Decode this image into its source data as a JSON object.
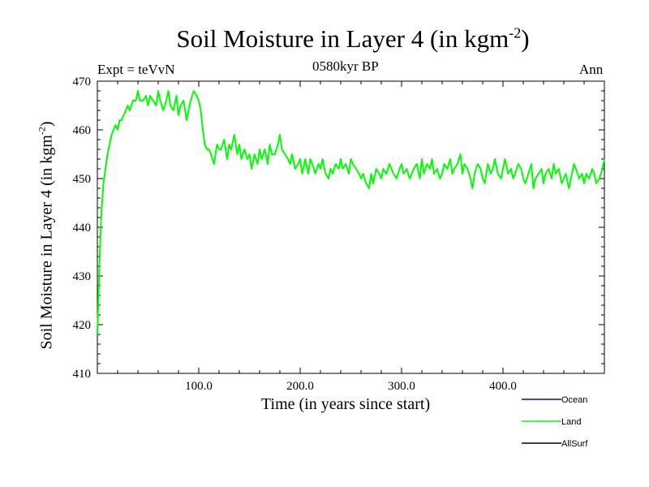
{
  "header": {
    "title_main": "Soil Moisture in Layer 4 (in kgm",
    "title_sup": "-2",
    "title_end": ")",
    "experiment": "Expt = teVvN",
    "period": "0580kyr BP",
    "season": "Ann"
  },
  "chart_data": {
    "type": "line",
    "title": "Soil Moisture in Layer 4 (in kgm-2)",
    "xlabel": "Time (in years since start)",
    "ylabel": "Soil Moisture in Layer 4 (in kgm-2)",
    "xlim": [
      0,
      500
    ],
    "ylim": [
      410,
      470
    ],
    "x_ticks": [
      100,
      200,
      300,
      400
    ],
    "x_tick_labels": [
      "100.0",
      "200.0",
      "300.0",
      "400.0"
    ],
    "y_ticks": [
      410,
      420,
      430,
      440,
      450,
      460,
      470
    ],
    "y_tick_labels": [
      "410",
      "420",
      "430",
      "440",
      "450",
      "460",
      "470"
    ],
    "legend_position": "bottom-right, below plot",
    "series": [
      {
        "name": "Ocean",
        "color": "#0000ff",
        "x": [],
        "y": []
      },
      {
        "name": "Land",
        "color": "#00ff00",
        "x": [
          0,
          1,
          2,
          3,
          4,
          5,
          6,
          8,
          10,
          12,
          14,
          16,
          18,
          20,
          22,
          24,
          26,
          28,
          30,
          32,
          35,
          38,
          40,
          42,
          45,
          48,
          50,
          52,
          55,
          58,
          60,
          62,
          65,
          68,
          70,
          72,
          75,
          78,
          80,
          82,
          85,
          88,
          90,
          92,
          95,
          98,
          100,
          102,
          104,
          106,
          108,
          110,
          112,
          115,
          118,
          120,
          122,
          125,
          128,
          130,
          132,
          135,
          138,
          140,
          142,
          145,
          148,
          150,
          152,
          155,
          158,
          160,
          162,
          165,
          168,
          170,
          172,
          175,
          178,
          180,
          182,
          185,
          188,
          190,
          192,
          195,
          198,
          200,
          202,
          205,
          208,
          210,
          212,
          215,
          218,
          220,
          222,
          225,
          228,
          230,
          232,
          235,
          238,
          240,
          242,
          245,
          248,
          250,
          252,
          255,
          258,
          260,
          262,
          265,
          268,
          270,
          272,
          275,
          278,
          280,
          282,
          285,
          288,
          290,
          292,
          295,
          298,
          300,
          302,
          305,
          308,
          310,
          312,
          315,
          318,
          320,
          322,
          325,
          328,
          330,
          332,
          335,
          338,
          340,
          342,
          345,
          348,
          350,
          352,
          355,
          358,
          360,
          362,
          365,
          368,
          370,
          372,
          375,
          378,
          380,
          382,
          385,
          388,
          390,
          392,
          395,
          398,
          400,
          402,
          405,
          408,
          410,
          412,
          415,
          418,
          420,
          422,
          425,
          428,
          430,
          432,
          435,
          438,
          440,
          442,
          445,
          448,
          450,
          452,
          455,
          458,
          460,
          462,
          465,
          468,
          470,
          472,
          475,
          478,
          480,
          482,
          485,
          488,
          490,
          492,
          495,
          498,
          500
        ],
        "y": [
          418,
          425,
          432,
          438,
          443,
          446,
          449,
          452,
          455,
          457,
          459,
          460,
          461,
          460,
          462,
          462,
          463,
          464,
          465,
          464,
          466,
          466,
          468,
          466,
          466,
          467,
          465,
          467,
          466,
          465,
          468,
          466,
          464,
          466,
          468,
          465,
          464,
          467,
          463,
          465,
          466,
          462,
          464,
          466,
          468,
          467,
          466,
          464,
          460,
          457,
          456,
          456,
          455,
          453,
          457,
          456,
          456,
          458,
          454,
          457,
          456,
          459,
          455,
          457,
          454,
          456,
          454,
          455,
          452,
          455,
          453,
          456,
          454,
          456,
          453,
          457,
          455,
          455,
          457,
          459,
          456,
          455,
          454,
          453,
          455,
          452,
          453,
          454,
          451,
          454,
          451,
          454,
          453,
          451,
          453,
          452,
          454,
          451,
          450,
          452,
          451,
          453,
          452,
          454,
          452,
          453,
          451,
          454,
          453,
          452,
          451,
          450,
          451,
          449,
          448,
          451,
          449,
          452,
          451,
          450,
          452,
          451,
          453,
          452,
          451,
          450,
          452,
          453,
          451,
          452,
          450,
          451,
          452,
          453,
          450,
          454,
          451,
          453,
          452,
          454,
          451,
          452,
          450,
          451,
          453,
          452,
          454,
          451,
          452,
          453,
          455,
          451,
          453,
          452,
          450,
          448,
          451,
          453,
          452,
          450,
          449,
          453,
          451,
          452,
          454,
          451,
          450,
          452,
          454,
          451,
          452,
          450,
          451,
          453,
          452,
          450,
          449,
          451,
          453,
          448,
          450,
          451,
          452,
          449,
          451,
          452,
          450,
          453,
          451,
          452,
          449,
          450,
          451,
          448,
          451,
          453,
          452,
          450,
          451,
          449,
          451,
          450,
          452,
          451,
          449,
          450,
          452,
          454
        ]
      },
      {
        "name": "AllSurf",
        "color": "#000000",
        "x": [],
        "y": []
      }
    ]
  }
}
